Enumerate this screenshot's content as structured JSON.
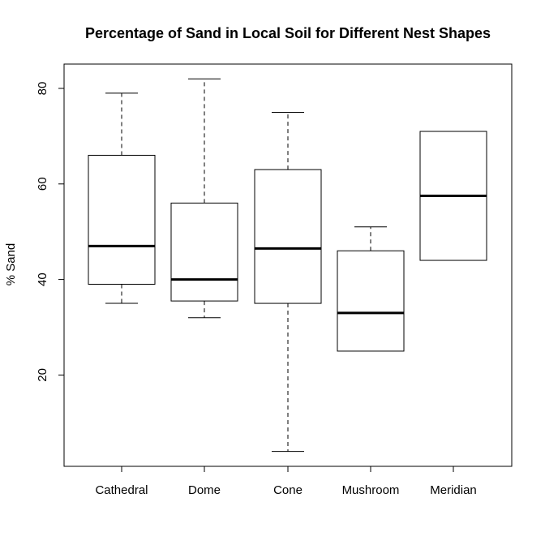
{
  "chart_data": {
    "type": "boxplot",
    "title": "Percentage of Sand in Local Soil for Different Nest Shapes",
    "xlabel": "",
    "ylabel": "% Sand",
    "ylim": [
      0,
      85
    ],
    "yticks": [
      20,
      40,
      60,
      80
    ],
    "categories": [
      "Cathedral",
      "Dome",
      "Cone",
      "Mushroom",
      "Meridian"
    ],
    "boxes": [
      {
        "name": "Cathedral",
        "min": 35,
        "q1": 39,
        "median": 47,
        "q3": 66,
        "max": 79
      },
      {
        "name": "Dome",
        "min": 32,
        "q1": 35.5,
        "median": 40,
        "q3": 56,
        "max": 82
      },
      {
        "name": "Cone",
        "min": 4,
        "q1": 35,
        "median": 46.5,
        "q3": 63,
        "max": 75
      },
      {
        "name": "Mushroom",
        "min": 25,
        "q1": 25,
        "median": 33,
        "q3": 46,
        "max": 51
      },
      {
        "name": "Meridian",
        "min": 44,
        "q1": 44,
        "median": 57.5,
        "q3": 71,
        "max": 71
      }
    ],
    "grid": false,
    "legend": "none",
    "colors": {
      "stroke": "#000000",
      "fill": "#ffffff"
    }
  }
}
